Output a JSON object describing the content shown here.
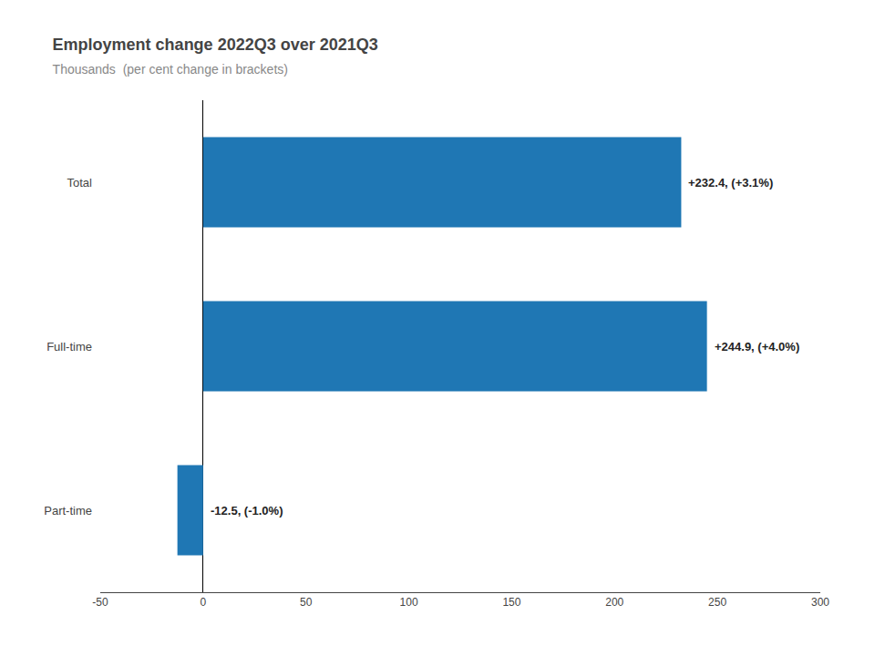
{
  "chart_data": {
    "type": "bar",
    "orientation": "horizontal",
    "title": "Employment change 2022Q3 over 2021Q3",
    "subtitle": "Thousands  (per cent change in brackets)",
    "categories": [
      "Total",
      "Full-time",
      "Part-time"
    ],
    "values": [
      232.4,
      244.9,
      -12.5
    ],
    "data_labels": true,
    "value_labels": [
      "+232.4, (+3.1%)",
      "+244.9, (+4.0%)",
      "-12.5, (-1.0%)"
    ],
    "xlim": [
      -50,
      300
    ],
    "xticks": [
      -50,
      0,
      50,
      100,
      150,
      200,
      250,
      300
    ],
    "grid": false
  }
}
